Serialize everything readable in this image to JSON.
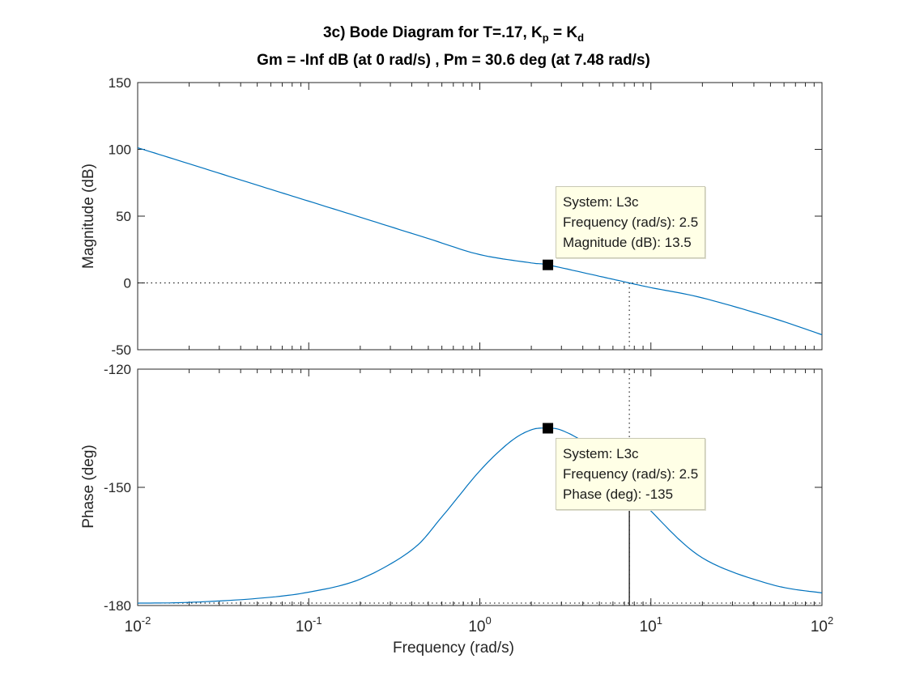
{
  "title": {
    "line1_prefix": "3c) Bode Diagram for T=.17, K",
    "kp_sub": "p",
    "line1_mid": " = K",
    "kd_sub": "d",
    "line2": "Gm = -Inf dB (at 0 rad/s) ,  Pm = 30.6 deg (at 7.48 rad/s)"
  },
  "xlabel": "Frequency  (rad/s)",
  "chart_data": [
    {
      "type": "line",
      "ylabel": "Magnitude (dB)",
      "xscale": "log",
      "xlim": [
        0.01,
        100
      ],
      "ylim": [
        -50,
        150
      ],
      "yticks": [
        -50,
        0,
        50,
        100,
        150
      ],
      "ytick_labels": [
        "-50",
        "0",
        "50",
        "100",
        "150"
      ],
      "series": [
        {
          "x": [
            0.01,
            0.02,
            0.05,
            0.1,
            0.2,
            0.5,
            1,
            2,
            2.5,
            5,
            7.48,
            10,
            20,
            50,
            100
          ],
          "y": [
            101.2,
            89.2,
            73.2,
            61.2,
            49.2,
            33.2,
            21.2,
            15.0,
            13.5,
            5.0,
            0.0,
            -3.5,
            -11.2,
            -25.8,
            -38.8
          ],
          "color": "#0072bd"
        }
      ],
      "reference_lines": [
        {
          "orientation": "horizontal",
          "y": 0,
          "style": "dotted"
        },
        {
          "orientation": "vertical",
          "x": 7.48,
          "style": "dotted"
        }
      ],
      "marker": {
        "x": 2.5,
        "y": 13.5
      },
      "datatip": {
        "system": "System: L3c",
        "frequency": "Frequency (rad/s): 2.5",
        "value": "Magnitude (dB): 13.5"
      },
      "grid": false
    },
    {
      "type": "line",
      "ylabel": "Phase (deg)",
      "xscale": "log",
      "xlim": [
        0.01,
        100
      ],
      "ylim": [
        -180,
        -120
      ],
      "yticks": [
        -180,
        -150,
        -120
      ],
      "ytick_labels": [
        "-180",
        "-150",
        "-120"
      ],
      "series": [
        {
          "x": [
            0.01,
            0.02,
            0.05,
            0.1,
            0.2,
            0.4,
            0.6,
            1,
            1.5,
            2,
            2.5,
            3,
            4,
            5,
            7.48,
            10,
            20,
            50,
            100
          ],
          "y": [
            -179.4,
            -179.2,
            -178.2,
            -176.6,
            -173.3,
            -165.9,
            -157.5,
            -145.8,
            -138.5,
            -135.4,
            -135.0,
            -135.5,
            -138.3,
            -141.8,
            -149.4,
            -156.0,
            -167.9,
            -174.6,
            -176.8
          ],
          "color": "#0072bd"
        }
      ],
      "reference_lines": [
        {
          "orientation": "horizontal",
          "y": -180,
          "style": "dotted"
        },
        {
          "orientation": "vertical",
          "x": 7.48,
          "style": "dotted"
        }
      ],
      "phase_margin_line": {
        "x": 7.48,
        "from": -180,
        "to": -149.4
      },
      "marker": {
        "x": 2.5,
        "y": -135
      },
      "datatip": {
        "system": "System: L3c",
        "frequency": "Frequency (rad/s): 2.5",
        "value": "Phase (deg): -135"
      },
      "grid": false
    }
  ],
  "xticks": {
    "values": [
      0.01,
      0.1,
      1,
      10,
      100
    ],
    "bases": [
      "10",
      "10",
      "10",
      "10",
      "10"
    ],
    "exponents": [
      "-2",
      "-1",
      "0",
      "1",
      "2"
    ]
  }
}
